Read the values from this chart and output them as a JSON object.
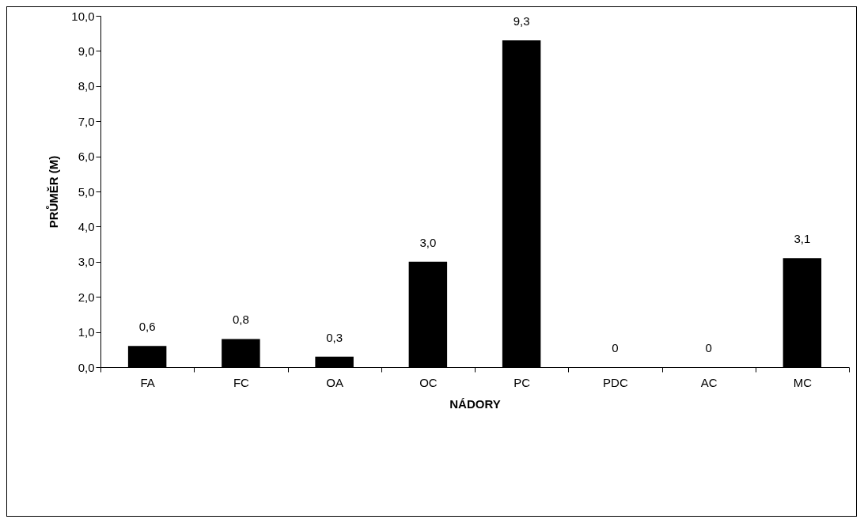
{
  "chart_data": {
    "type": "bar",
    "xlabel": "NÁDORY",
    "ylabel": "PRŮMĚR (M)",
    "categories": [
      "FA",
      "FC",
      "OA",
      "OC",
      "PC",
      "PDC",
      "AC",
      "MC"
    ],
    "values": [
      0.6,
      0.8,
      0.3,
      3.0,
      9.3,
      0,
      0,
      3.1
    ],
    "value_labels": [
      "0,6",
      "0,8",
      "0,3",
      "3,0",
      "9,3",
      "0",
      "0",
      "3,1"
    ],
    "color": "#000000",
    "ylim": [
      0,
      10
    ],
    "yticks": [
      {
        "value": 0,
        "label": "0,0"
      },
      {
        "value": 1,
        "label": "1,0"
      },
      {
        "value": 2,
        "label": "2,0"
      },
      {
        "value": 3,
        "label": "3,0"
      },
      {
        "value": 4,
        "label": "4,0"
      },
      {
        "value": 5,
        "label": "5,0"
      },
      {
        "value": 6,
        "label": "6,0"
      },
      {
        "value": 7,
        "label": "7,0"
      },
      {
        "value": 8,
        "label": "8,0"
      },
      {
        "value": 9,
        "label": "9,0"
      },
      {
        "value": 10,
        "label": "10,0"
      }
    ],
    "grid": false
  }
}
